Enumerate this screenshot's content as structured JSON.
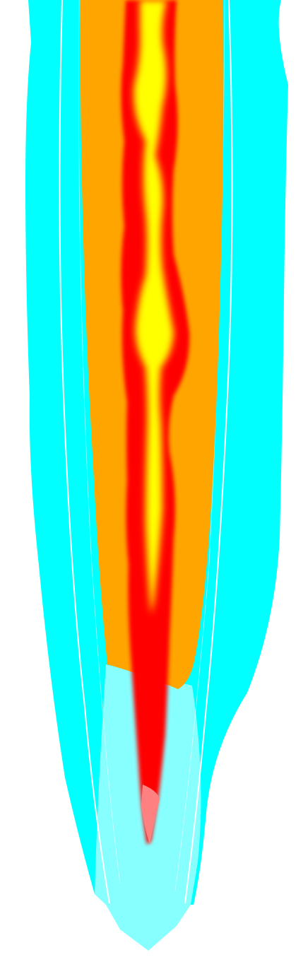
{
  "colors": {
    "background": "#ffffff",
    "outer_glow": "#00ffff",
    "inner_pale": "#88ffff",
    "orange_band": "#ffa500",
    "red_core": "#ff0000",
    "yellow_core": "#ffff00",
    "tip_pink": "#ff8080",
    "outline": "#ffffff"
  }
}
